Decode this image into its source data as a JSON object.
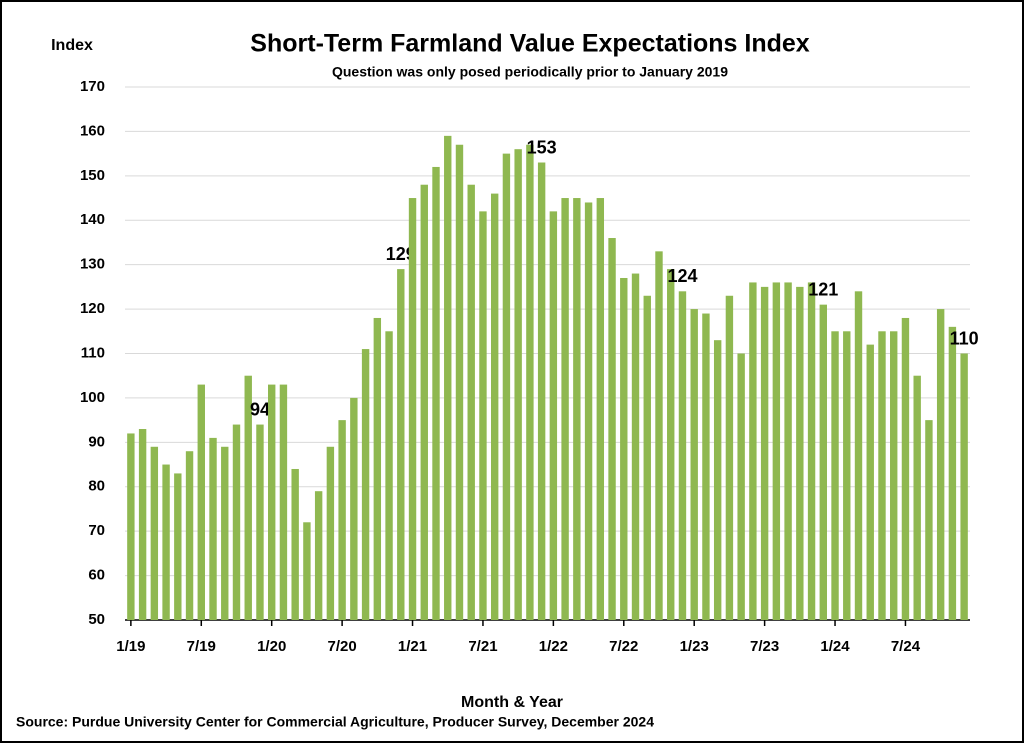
{
  "chart_data": {
    "type": "bar",
    "title": "Short-Term Farmland Value Expectations Index",
    "subtitle": "Question was only posed periodically prior to January 2019",
    "y_label": "Index",
    "x_label": "Month & Year",
    "source": "Source: Purdue University Center for Commercial Agriculture, Producer Survey, December 2024",
    "categories": [
      "1/19",
      null,
      null,
      null,
      null,
      null,
      "7/19",
      null,
      null,
      null,
      null,
      null,
      "1/20",
      null,
      null,
      null,
      null,
      null,
      "7/20",
      null,
      null,
      null,
      null,
      null,
      "1/21",
      null,
      null,
      null,
      null,
      null,
      "7/21",
      null,
      null,
      null,
      null,
      null,
      "1/22",
      null,
      null,
      null,
      null,
      null,
      "7/22",
      null,
      null,
      null,
      null,
      null,
      "1/23",
      null,
      null,
      null,
      null,
      null,
      "7/23",
      null,
      null,
      null,
      null,
      null,
      "1/24",
      null,
      null,
      null,
      null,
      null,
      "7/24",
      null,
      null,
      null,
      null,
      null
    ],
    "values": [
      92,
      93,
      89,
      85,
      83,
      88,
      103,
      91,
      89,
      94,
      105,
      94,
      103,
      103,
      84,
      72,
      79,
      89,
      95,
      100,
      111,
      118,
      115,
      129,
      145,
      148,
      152,
      159,
      157,
      148,
      142,
      146,
      155,
      156,
      157,
      153,
      142,
      145,
      145,
      144,
      145,
      136,
      127,
      128,
      123,
      133,
      129,
      124,
      120,
      119,
      113,
      123,
      110,
      126,
      125,
      126,
      126,
      125,
      126,
      121,
      115,
      115,
      124,
      112,
      115,
      115,
      118,
      105,
      95,
      120,
      116,
      110
    ],
    "color": "#8fb850",
    "ylim": [
      50,
      170
    ],
    "yticks": [
      50,
      60,
      70,
      80,
      90,
      100,
      110,
      120,
      130,
      140,
      150,
      160,
      170
    ],
    "grid": true
  }
}
